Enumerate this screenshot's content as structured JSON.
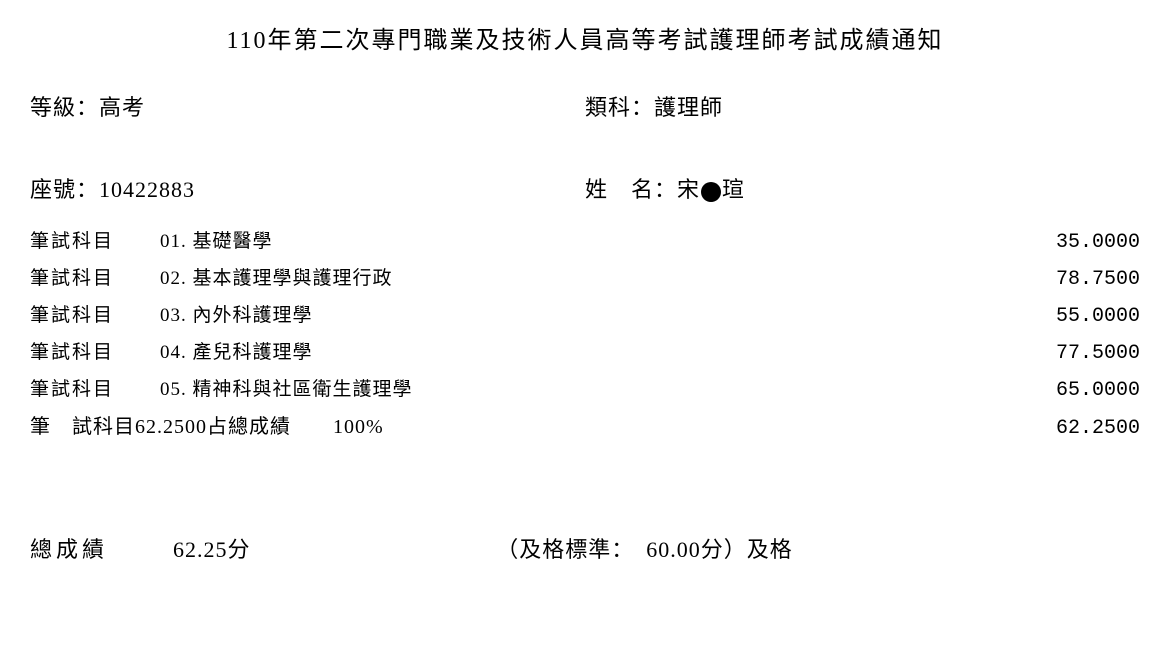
{
  "title": "110年第二次專門職業及技術人員高等考試護理師考試成績通知",
  "header": {
    "level_label": "等級：",
    "level_value": "高考",
    "category_label": "類科：",
    "category_value": "護理師"
  },
  "info": {
    "seat_label": "座號：",
    "seat_value": "10422883",
    "name_label": "姓　名：",
    "name_first": "宋",
    "name_last": "瑄"
  },
  "subject_label": "筆試科目",
  "subjects": [
    {
      "code": "01.",
      "name": "基礎醫學",
      "score": "35.0000"
    },
    {
      "code": "02.",
      "name": "基本護理學與護理行政",
      "score": "78.7500"
    },
    {
      "code": "03.",
      "name": "內外科護理學",
      "score": "55.0000"
    },
    {
      "code": "04.",
      "name": "產兒科護理學",
      "score": "77.5000"
    },
    {
      "code": "05.",
      "name": "精神科與社區衛生護理學",
      "score": "65.0000"
    }
  ],
  "summary": {
    "label": "筆",
    "label2": "試科目 ",
    "avg": "62.2500 ",
    "pct_label": "占總成績　　",
    "pct": "100%",
    "score": "62.2500"
  },
  "final": {
    "total_label": "總成績",
    "total_score": "62.25分",
    "pass_text": "（及格標準：　60.00分）及格"
  }
}
